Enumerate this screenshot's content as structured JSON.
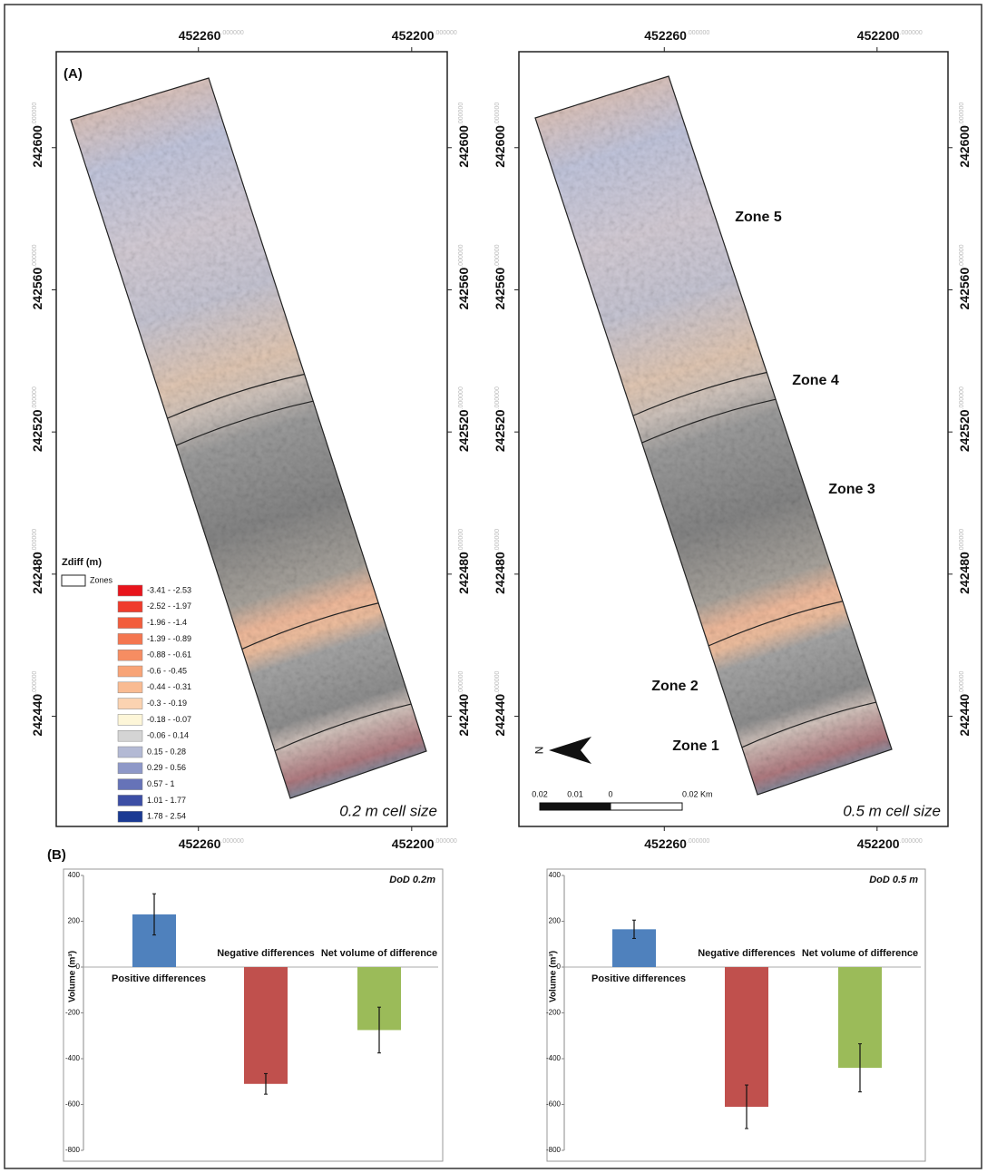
{
  "panel_labels": [
    "(A)",
    "(B)"
  ],
  "maps": [
    {
      "xlim": [
        452300,
        452190
      ],
      "ylim": [
        242627,
        242409
      ],
      "xticks": [
        {
          "value": 452260,
          "label": "452260.000000"
        },
        {
          "value": 452200,
          "label": "452200.000000"
        }
      ],
      "yticks": [
        {
          "value": 242600,
          "label": "242600.000000"
        },
        {
          "value": 242560,
          "label": "242560.000000"
        },
        {
          "value": 242520,
          "label": "242520.000000"
        },
        {
          "value": 242480,
          "label": "242480.000000"
        },
        {
          "value": 242440,
          "label": "242440.000000"
        }
      ],
      "caption": "0.2 m cell size",
      "legend": {
        "title": "Zdiff (m)",
        "zones_label": "Zones",
        "classes": [
          {
            "label": "-3.41 - -2.53",
            "color": "#e8141c"
          },
          {
            "label": "-2.52 - -1.97",
            "color": "#ef3b2c"
          },
          {
            "label": "-1.96 - -1.4",
            "color": "#f25c3c"
          },
          {
            "label": "-1.39 - -0.89",
            "color": "#f47650"
          },
          {
            "label": "-0.88 - -0.61",
            "color": "#f68d62"
          },
          {
            "label": "-0.6 - -0.45",
            "color": "#f8a477"
          },
          {
            "label": "-0.44 - -0.31",
            "color": "#f9bb92"
          },
          {
            "label": "-0.3 - -0.19",
            "color": "#fbd3b1"
          },
          {
            "label": "-0.18 - -0.07",
            "color": "#fdf6d8"
          },
          {
            "label": "-0.06 - 0.14",
            "color": "#d4d4d4"
          },
          {
            "label": "0.15 - 0.28",
            "color": "#b3b9d4"
          },
          {
            "label": "0.29 - 0.56",
            "color": "#8e98c8"
          },
          {
            "label": "0.57 - 1",
            "color": "#6673b8"
          },
          {
            "label": "1.01 - 1.77",
            "color": "#3c4ea5"
          },
          {
            "label": "1.78 - 2.54",
            "color": "#1b3a93"
          }
        ]
      }
    },
    {
      "xlim": [
        452301,
        452180
      ],
      "ylim": [
        242627,
        242409
      ],
      "xticks": [
        {
          "value": 452260,
          "label": "452260.000000"
        },
        {
          "value": 452200,
          "label": "452200.000000"
        }
      ],
      "yticks": [
        {
          "value": 242600,
          "label": "242600.000000"
        },
        {
          "value": 242560,
          "label": "242560.000000"
        },
        {
          "value": 242520,
          "label": "242520.000000"
        },
        {
          "value": 242480,
          "label": "242480.000000"
        },
        {
          "value": 242440,
          "label": "242440.000000"
        }
      ],
      "caption": "0.5 m cell size",
      "zones": [
        "Zone 5",
        "Zone 4",
        "Zone 3",
        "Zone 2",
        "Zone 1"
      ],
      "north": "N",
      "scale_bar": [
        "0.02",
        "0.01",
        "0",
        "0.02 Km"
      ]
    }
  ],
  "chart_data": [
    {
      "type": "bar",
      "title": "DoD 0.2m",
      "y_label": "Volume (m³)",
      "categories": [
        "Positive differences",
        "Negative differences",
        "Net volume of difference"
      ],
      "values": [
        230,
        -510,
        -275
      ],
      "errors": [
        90,
        45,
        100
      ],
      "colors": [
        "#4f81bd",
        "#c0504d",
        "#9bbb59"
      ],
      "ylim": [
        -800,
        400
      ],
      "yticks": [
        -800,
        -600,
        -400,
        -200,
        0,
        200,
        400
      ]
    },
    {
      "type": "bar",
      "title": "DoD 0.5 m",
      "y_label": "Volume (m³)",
      "categories": [
        "Positive differences",
        "Negative differences",
        "Net volume of difference"
      ],
      "values": [
        165,
        -610,
        -440
      ],
      "errors": [
        40,
        95,
        105
      ],
      "colors": [
        "#4f81bd",
        "#c0504d",
        "#9bbb59"
      ],
      "ylim": [
        -800,
        400
      ],
      "yticks": [
        -800,
        -600,
        -400,
        -200,
        0,
        200,
        400
      ]
    }
  ]
}
